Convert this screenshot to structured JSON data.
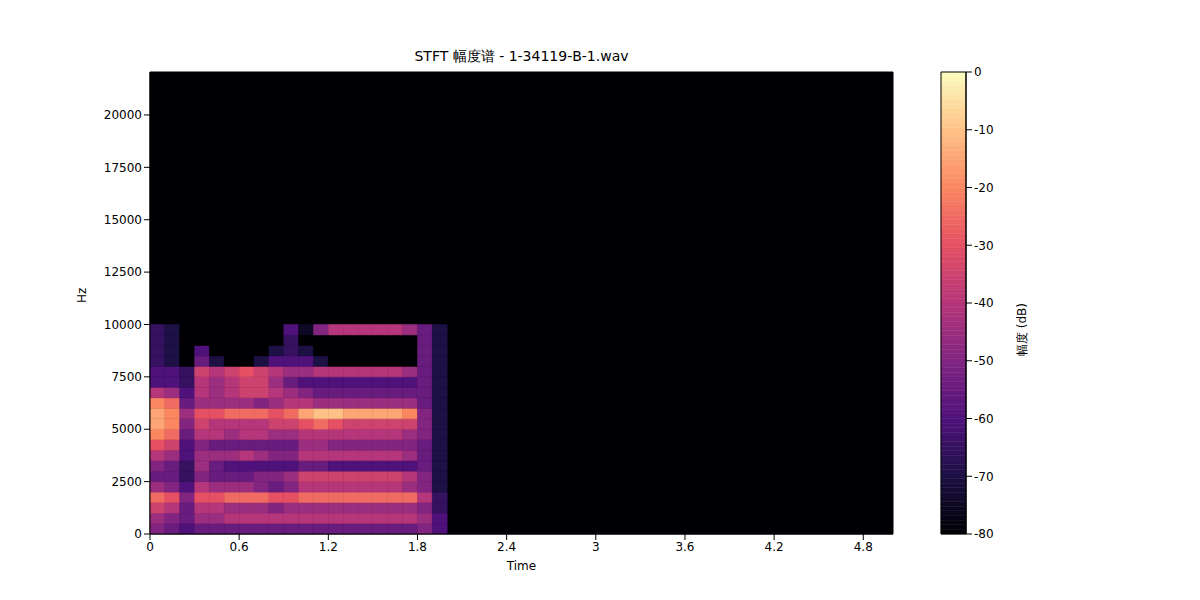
{
  "chart_data": {
    "type": "heatmap",
    "title": "STFT 幅度谱 - 1-34119-B-1.wav",
    "x_label": "Time",
    "y_label": "Hz",
    "xlim": [
      0,
      5
    ],
    "xticks": [
      0,
      0.6,
      1.2,
      1.8,
      2.4,
      3,
      3.6,
      4.2,
      4.8
    ],
    "ylim": [
      0,
      22050
    ],
    "yticks": [
      0,
      2500,
      5000,
      7500,
      10000,
      12500,
      15000,
      17500,
      20000
    ],
    "fill_value": -80,
    "x_edges": [
      0,
      0.1,
      0.2,
      0.3,
      0.4,
      0.5,
      0.6,
      0.7,
      0.8,
      0.9,
      1.0,
      1.1,
      1.2,
      1.3,
      1.4,
      1.5,
      1.6,
      1.7,
      1.8,
      1.9,
      2.0
    ],
    "y_edges": [
      0,
      500,
      1000,
      1500,
      2000,
      2500,
      3000,
      3500,
      4000,
      4500,
      5000,
      5500,
      6000,
      6500,
      7000,
      7500,
      8000,
      8500,
      9000,
      9500,
      10000
    ],
    "cells": [
      [
        -50,
        -55,
        -60,
        -55,
        -55,
        -55,
        -55,
        -55,
        -55,
        -55,
        -55,
        -55,
        -55,
        -55,
        -55,
        -55,
        -55,
        -55,
        -50,
        -60
      ],
      [
        -45,
        -50,
        -55,
        -45,
        -45,
        -40,
        -40,
        -40,
        -40,
        -40,
        -40,
        -40,
        -40,
        -40,
        -40,
        -40,
        -40,
        -40,
        -45,
        -60
      ],
      [
        -35,
        -40,
        -55,
        -40,
        -40,
        -45,
        -45,
        -45,
        -50,
        -45,
        -45,
        -45,
        -45,
        -45,
        -45,
        -45,
        -45,
        -45,
        -50,
        -65
      ],
      [
        -25,
        -30,
        -50,
        -30,
        -30,
        -25,
        -25,
        -25,
        -30,
        -30,
        -25,
        -25,
        -25,
        -25,
        -25,
        -25,
        -25,
        -25,
        -40,
        -65
      ],
      [
        -45,
        -50,
        -60,
        -40,
        -45,
        -45,
        -45,
        -50,
        -55,
        -50,
        -40,
        -40,
        -40,
        -40,
        -40,
        -40,
        -40,
        -45,
        -50,
        -70
      ],
      [
        -55,
        -55,
        -65,
        -50,
        -55,
        -55,
        -55,
        -50,
        -50,
        -45,
        -35,
        -35,
        -35,
        -35,
        -35,
        -35,
        -35,
        -40,
        -50,
        -70
      ],
      [
        -50,
        -55,
        -65,
        -45,
        -55,
        -60,
        -60,
        -60,
        -60,
        -60,
        -55,
        -55,
        -60,
        -60,
        -60,
        -60,
        -60,
        -60,
        -55,
        -70
      ],
      [
        -40,
        -45,
        -60,
        -45,
        -45,
        -45,
        -40,
        -45,
        -50,
        -50,
        -40,
        -40,
        -40,
        -40,
        -40,
        -40,
        -40,
        -45,
        -55,
        -70
      ],
      [
        -30,
        -35,
        -60,
        -50,
        -55,
        -55,
        -55,
        -55,
        -55,
        -55,
        -45,
        -45,
        -50,
        -50,
        -50,
        -50,
        -50,
        -50,
        -55,
        -70
      ],
      [
        -20,
        -25,
        -55,
        -40,
        -40,
        -45,
        -40,
        -40,
        -45,
        -45,
        -40,
        -40,
        -40,
        -40,
        -40,
        -40,
        -40,
        -45,
        -50,
        -70
      ],
      [
        -15,
        -20,
        -50,
        -35,
        -40,
        -40,
        -40,
        -40,
        -35,
        -35,
        -30,
        -25,
        -30,
        -35,
        -35,
        -35,
        -35,
        -35,
        -50,
        -70
      ],
      [
        -15,
        -20,
        -45,
        -30,
        -30,
        -25,
        -25,
        -25,
        -30,
        -25,
        -15,
        -10,
        -10,
        -15,
        -15,
        -15,
        -15,
        -20,
        -50,
        -70
      ],
      [
        -20,
        -25,
        -55,
        -45,
        -45,
        -45,
        -45,
        -50,
        -45,
        -40,
        -40,
        -45,
        -45,
        -45,
        -45,
        -45,
        -45,
        -45,
        -55,
        -70
      ],
      [
        -40,
        -45,
        -60,
        -40,
        -45,
        -40,
        -35,
        -35,
        -40,
        -45,
        -50,
        -55,
        -55,
        -55,
        -55,
        -55,
        -55,
        -55,
        -55,
        -70
      ],
      [
        -60,
        -60,
        -65,
        -40,
        -45,
        -40,
        -35,
        -35,
        -45,
        -55,
        -60,
        -60,
        -60,
        -60,
        -60,
        -60,
        -60,
        -60,
        -55,
        -70
      ],
      [
        -60,
        -60,
        -65,
        -35,
        -40,
        -35,
        -30,
        -35,
        -40,
        -45,
        -45,
        -40,
        -40,
        -40,
        -40,
        -40,
        -40,
        -45,
        -55,
        -70
      ],
      [
        -65,
        -70,
        -80,
        -55,
        -70,
        -80,
        -80,
        -70,
        -60,
        -60,
        -60,
        -70,
        -80,
        -80,
        -80,
        -80,
        -80,
        -80,
        -55,
        -70
      ],
      [
        -65,
        -70,
        -80,
        -60,
        -80,
        -80,
        -80,
        -80,
        -70,
        -65,
        -70,
        -80,
        -80,
        -80,
        -80,
        -80,
        -80,
        -80,
        -55,
        -70
      ],
      [
        -65,
        -70,
        -80,
        -80,
        -80,
        -80,
        -80,
        -80,
        -80,
        -65,
        -80,
        -80,
        -80,
        -80,
        -80,
        -80,
        -80,
        -80,
        -55,
        -70
      ],
      [
        -65,
        -70,
        -80,
        -80,
        -80,
        -80,
        -80,
        -80,
        -80,
        -60,
        -75,
        -50,
        -40,
        -40,
        -40,
        -40,
        -40,
        -45,
        -55,
        -70
      ]
    ],
    "colorbar": {
      "lim": [
        -80,
        0
      ],
      "ticks": [
        0,
        -10,
        -20,
        -30,
        -40,
        -50,
        -60,
        -70,
        -80
      ],
      "label": "幅度 (dB)"
    }
  }
}
